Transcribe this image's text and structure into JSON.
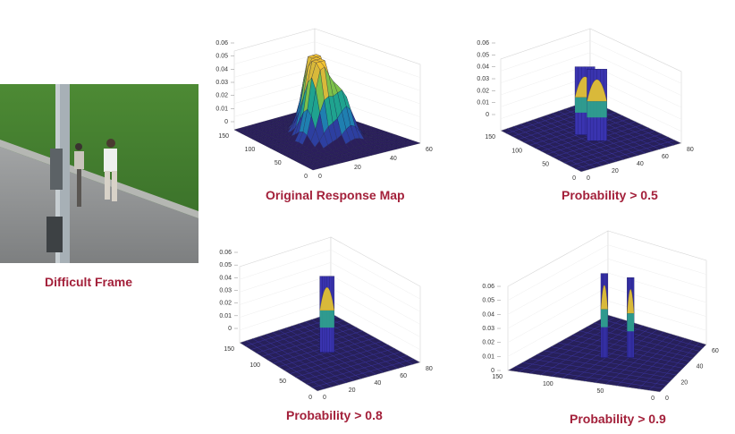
{
  "frame": {
    "caption": "Difficult Frame",
    "colors": {
      "grass": "#3f7a2e",
      "road": "#8e9090",
      "pole": "#9aa3aa"
    }
  },
  "plots": [
    {
      "caption": "Original Response Map",
      "z_ticks": [
        "0.06",
        "0.05",
        "0.04",
        "0.03",
        "0.02",
        "0.01",
        "0"
      ],
      "left_axis_ticks": [
        "150",
        "100",
        "50",
        "0"
      ],
      "right_axis_ticks": [
        "0",
        "20",
        "40",
        "60"
      ]
    },
    {
      "caption": "Probability > 0.5",
      "z_ticks": [
        "0.06",
        "0.05",
        "0.04",
        "0.03",
        "0.02",
        "0.01",
        "0"
      ],
      "left_axis_ticks": [
        "150",
        "100",
        "50",
        "0"
      ],
      "right_axis_ticks": [
        "0",
        "20",
        "40",
        "60",
        "80"
      ]
    },
    {
      "caption": "Probability > 0.8",
      "z_ticks": [
        "0.06",
        "0.05",
        "0.04",
        "0.03",
        "0.02",
        "0.01",
        "0"
      ],
      "left_axis_ticks": [
        "150",
        "100",
        "50",
        "0"
      ],
      "right_axis_ticks": [
        "0",
        "20",
        "40",
        "60",
        "80"
      ]
    },
    {
      "caption": "Probability > 0.9",
      "z_ticks": [
        "0.06",
        "0.05",
        "0.04",
        "0.03",
        "0.02",
        "0.01",
        "0"
      ],
      "left_axis_ticks": [
        "150",
        "100",
        "50",
        "0"
      ],
      "right_axis_ticks": [
        "0",
        "20",
        "40",
        "60"
      ]
    }
  ],
  "colormap": [
    "#2b1f5c",
    "#2d3fa0",
    "#1f7fb0",
    "#1fa38f",
    "#7cc04a",
    "#d9b93a",
    "#f1c232"
  ]
}
